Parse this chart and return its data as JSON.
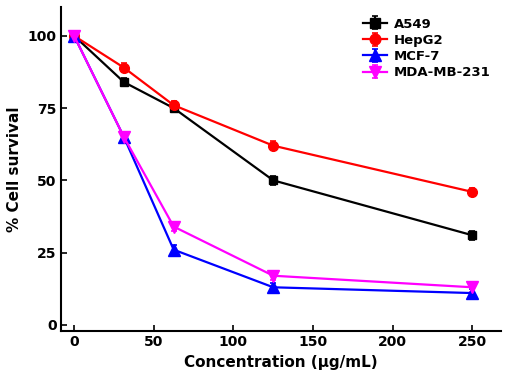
{
  "x": [
    0,
    31.25,
    62.5,
    125,
    250
  ],
  "A549": [
    100,
    84,
    75,
    50,
    31
  ],
  "HepG2": [
    100,
    89,
    76,
    62,
    46
  ],
  "MCF7": [
    100,
    65,
    26,
    13,
    11
  ],
  "MDAMB231": [
    100,
    65,
    34,
    17,
    13
  ],
  "A549_err": [
    0,
    1.5,
    1.5,
    1.5,
    1.5
  ],
  "HepG2_err": [
    0,
    1.5,
    1.5,
    1.5,
    1.5
  ],
  "MCF7_err": [
    0,
    1.5,
    1.5,
    1.5,
    1.5
  ],
  "MDAMB231_err": [
    0,
    1.5,
    1.5,
    1.5,
    1.5
  ],
  "colors": {
    "A549": "#000000",
    "HepG2": "#ff0000",
    "MCF7": "#0000ff",
    "MDAMB231": "#ff00ff"
  },
  "xlabel": "Concentration (μg/mL)",
  "ylabel": "% Cell survival",
  "xlim": [
    -8,
    268
  ],
  "ylim": [
    -2,
    110
  ],
  "xticks": [
    0,
    50,
    100,
    150,
    200,
    250
  ],
  "yticks": [
    0,
    25,
    50,
    75,
    100
  ],
  "legend_labels": [
    "A549",
    "HepG2",
    "MCF-7",
    "MDA-MB-231"
  ],
  "xlabel_fontsize": 11,
  "ylabel_fontsize": 11,
  "tick_fontsize": 10,
  "legend_fontsize": 9.5
}
